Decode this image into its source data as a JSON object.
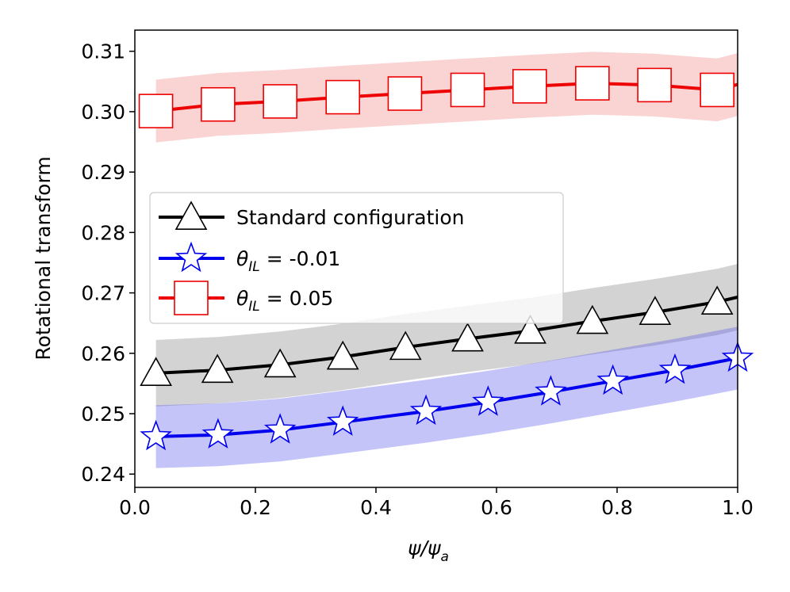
{
  "chart_data": {
    "type": "line",
    "xlabel": "ψ/ψa",
    "xlabel_main": "ψ/ψ",
    "xlabel_sub": "a",
    "ylabel": "Rotational transform",
    "xlim": [
      0.0,
      1.0
    ],
    "ylim": [
      0.2378,
      0.3135
    ],
    "xticks": [
      0.0,
      0.2,
      0.4,
      0.6,
      0.8,
      1.0
    ],
    "xtick_labels": [
      "0.0",
      "0.2",
      "0.4",
      "0.6",
      "0.8",
      "1.0"
    ],
    "yticks": [
      0.24,
      0.25,
      0.26,
      0.27,
      0.28,
      0.29,
      0.3,
      0.31
    ],
    "ytick_labels": [
      "0.24",
      "0.25",
      "0.26",
      "0.27",
      "0.28",
      "0.29",
      "0.30",
      "0.31"
    ],
    "legend_position": "center-left",
    "series": [
      {
        "name": "Standard configuration",
        "color": "#000000",
        "marker": "triangle",
        "band_color": "#808080",
        "band_halfwidth": 0.0055,
        "x": [
          0.035,
          0.137,
          0.241,
          0.345,
          0.449,
          0.552,
          0.656,
          0.759,
          0.863,
          0.966,
          1.0
        ],
        "y": [
          0.2567,
          0.2572,
          0.2581,
          0.2594,
          0.261,
          0.2624,
          0.2637,
          0.2653,
          0.2668,
          0.2685,
          0.2693
        ],
        "marker_x": [
          0.035,
          0.137,
          0.241,
          0.345,
          0.449,
          0.552,
          0.656,
          0.759,
          0.863,
          0.966
        ],
        "marker_y": [
          0.2567,
          0.2572,
          0.2581,
          0.2594,
          0.261,
          0.2624,
          0.2637,
          0.2653,
          0.2668,
          0.2685
        ]
      },
      {
        "name": "θIL = -0.01",
        "label_symbol": "θ",
        "label_sub": "IL",
        "label_rest": " = -0.01",
        "color": "#0000ee",
        "marker": "star",
        "band_color": "#5555ee",
        "band_halfwidth": 0.0052,
        "x": [
          0.035,
          0.138,
          0.241,
          0.345,
          0.483,
          0.586,
          0.69,
          0.793,
          0.896,
          1.0
        ],
        "y": [
          0.2462,
          0.2465,
          0.2473,
          0.2486,
          0.2504,
          0.2519,
          0.2536,
          0.2554,
          0.2572,
          0.2592
        ],
        "marker_x": [
          0.035,
          0.138,
          0.241,
          0.345,
          0.483,
          0.586,
          0.69,
          0.793,
          0.896,
          1.0
        ],
        "marker_y": [
          0.2462,
          0.2465,
          0.2473,
          0.2486,
          0.2504,
          0.2519,
          0.2536,
          0.2554,
          0.2572,
          0.2592
        ]
      },
      {
        "name": "θIL = 0.05",
        "label_symbol": "θ",
        "label_sub": "IL",
        "label_rest": " = 0.05",
        "color": "#ee0000",
        "marker": "square",
        "band_color": "#f08080",
        "band_halfwidth": 0.0052,
        "x": [
          0.035,
          0.138,
          0.241,
          0.345,
          0.448,
          0.552,
          0.655,
          0.759,
          0.862,
          0.966,
          1.0
        ],
        "y": [
          0.3001,
          0.3012,
          0.3017,
          0.3024,
          0.303,
          0.3036,
          0.3042,
          0.3047,
          0.3044,
          0.3036,
          0.3045
        ],
        "marker_x": [
          0.035,
          0.138,
          0.241,
          0.345,
          0.448,
          0.552,
          0.655,
          0.759,
          0.862,
          0.966
        ],
        "marker_y": [
          0.3001,
          0.3012,
          0.3017,
          0.3024,
          0.303,
          0.3036,
          0.3042,
          0.3047,
          0.3044,
          0.3036
        ]
      }
    ]
  }
}
